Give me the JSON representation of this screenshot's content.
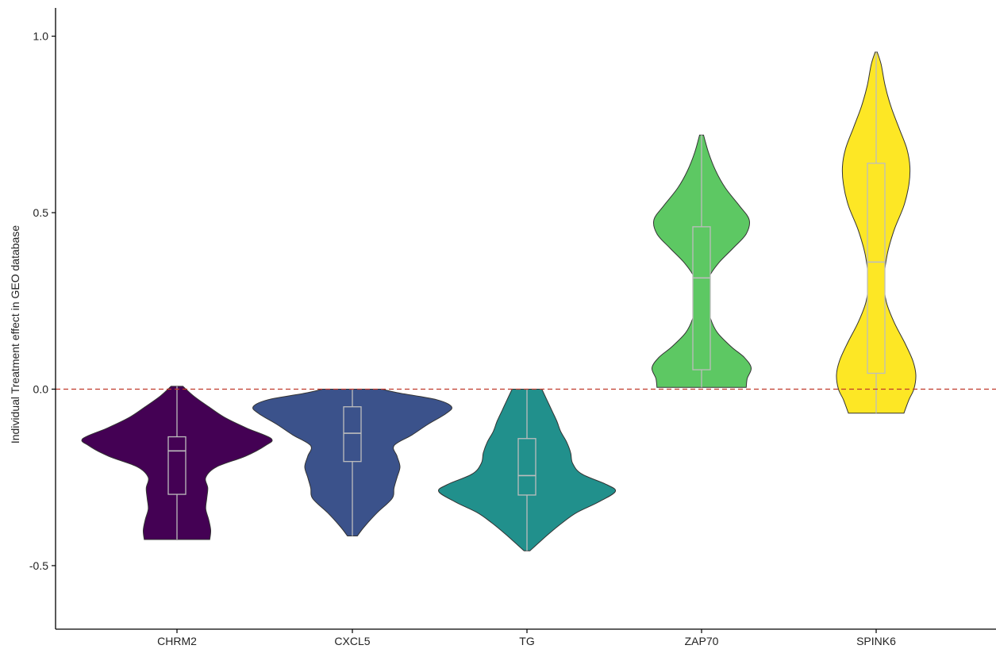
{
  "chart_data": {
    "type": "violin",
    "title": "",
    "xlabel": "",
    "ylabel": "Individual Treatment effect in GEO database",
    "ylim": [
      -0.68,
      1.08
    ],
    "y_ticks": [
      -0.5,
      0.0,
      0.5,
      1.0
    ],
    "y_tick_labels": [
      "-0.5",
      "0.0",
      "0.5",
      "1.0"
    ],
    "reference_line": {
      "y": 0.0,
      "style": "dashed",
      "color": "#c0392b"
    },
    "grid": false,
    "legend": "none",
    "categories": [
      "CHRM2",
      "CXCL5",
      "TG",
      "ZAP70",
      "SPINK6"
    ],
    "series": [
      {
        "category": "CHRM2",
        "color": "#440154",
        "min": -0.426,
        "max": 0.008,
        "box": {
          "q1": -0.298,
          "median": -0.175,
          "q3": -0.135
        },
        "density": [
          [
            -0.426,
            0.33
          ],
          [
            -0.4,
            0.34
          ],
          [
            -0.37,
            0.32
          ],
          [
            -0.34,
            0.29
          ],
          [
            -0.31,
            0.3
          ],
          [
            -0.28,
            0.31
          ],
          [
            -0.25,
            0.29
          ],
          [
            -0.22,
            0.4
          ],
          [
            -0.19,
            0.69
          ],
          [
            -0.16,
            0.89
          ],
          [
            -0.14,
            0.95
          ],
          [
            -0.11,
            0.7
          ],
          [
            -0.08,
            0.48
          ],
          [
            -0.05,
            0.32
          ],
          [
            -0.02,
            0.17
          ],
          [
            0.008,
            0.06
          ]
        ]
      },
      {
        "category": "CXCL5",
        "color": "#3b528b",
        "min": -0.416,
        "max": 0.0,
        "box": {
          "q1": -0.205,
          "median": -0.125,
          "q3": -0.05
        },
        "density": [
          [
            -0.416,
            0.05
          ],
          [
            -0.39,
            0.12
          ],
          [
            -0.35,
            0.25
          ],
          [
            -0.31,
            0.4
          ],
          [
            -0.28,
            0.42
          ],
          [
            -0.25,
            0.45
          ],
          [
            -0.22,
            0.48
          ],
          [
            -0.19,
            0.45
          ],
          [
            -0.16,
            0.42
          ],
          [
            -0.13,
            0.6
          ],
          [
            -0.1,
            0.76
          ],
          [
            -0.07,
            0.94
          ],
          [
            -0.05,
            1.0
          ],
          [
            -0.03,
            0.85
          ],
          [
            -0.01,
            0.45
          ],
          [
            0.0,
            0.3
          ]
        ]
      },
      {
        "category": "TG",
        "color": "#21908c",
        "min": -0.458,
        "max": 0.0,
        "box": {
          "q1": -0.3,
          "median": -0.245,
          "q3": -0.14
        },
        "density": [
          [
            -0.458,
            0.03
          ],
          [
            -0.44,
            0.1
          ],
          [
            -0.41,
            0.22
          ],
          [
            -0.38,
            0.35
          ],
          [
            -0.35,
            0.5
          ],
          [
            -0.32,
            0.72
          ],
          [
            -0.29,
            0.89
          ],
          [
            -0.27,
            0.8
          ],
          [
            -0.24,
            0.55
          ],
          [
            -0.21,
            0.46
          ],
          [
            -0.18,
            0.44
          ],
          [
            -0.15,
            0.4
          ],
          [
            -0.12,
            0.34
          ],
          [
            -0.09,
            0.3
          ],
          [
            -0.06,
            0.25
          ],
          [
            -0.03,
            0.2
          ],
          [
            0.0,
            0.15
          ]
        ]
      },
      {
        "category": "ZAP70",
        "color": "#5dc863",
        "min": 0.005,
        "max": 0.72,
        "box": {
          "q1": 0.055,
          "median": 0.315,
          "q3": 0.46
        },
        "density": [
          [
            0.005,
            0.45
          ],
          [
            0.03,
            0.46
          ],
          [
            0.06,
            0.5
          ],
          [
            0.09,
            0.43
          ],
          [
            0.12,
            0.3
          ],
          [
            0.16,
            0.16
          ],
          [
            0.2,
            0.09
          ],
          [
            0.24,
            0.06
          ],
          [
            0.28,
            0.05
          ],
          [
            0.32,
            0.08
          ],
          [
            0.36,
            0.18
          ],
          [
            0.4,
            0.32
          ],
          [
            0.44,
            0.45
          ],
          [
            0.48,
            0.48
          ],
          [
            0.52,
            0.38
          ],
          [
            0.57,
            0.24
          ],
          [
            0.62,
            0.14
          ],
          [
            0.67,
            0.07
          ],
          [
            0.72,
            0.02
          ]
        ]
      },
      {
        "category": "SPINK6",
        "color": "#fde725",
        "min": -0.068,
        "max": 0.955,
        "box": {
          "q1": 0.045,
          "median": 0.36,
          "q3": 0.64
        },
        "density": [
          [
            -0.068,
            0.28
          ],
          [
            -0.03,
            0.33
          ],
          [
            0.0,
            0.38
          ],
          [
            0.04,
            0.4
          ],
          [
            0.08,
            0.37
          ],
          [
            0.13,
            0.29
          ],
          [
            0.19,
            0.18
          ],
          [
            0.25,
            0.1
          ],
          [
            0.31,
            0.08
          ],
          [
            0.38,
            0.11
          ],
          [
            0.45,
            0.18
          ],
          [
            0.52,
            0.28
          ],
          [
            0.58,
            0.33
          ],
          [
            0.63,
            0.34
          ],
          [
            0.68,
            0.31
          ],
          [
            0.74,
            0.23
          ],
          [
            0.8,
            0.15
          ],
          [
            0.86,
            0.09
          ],
          [
            0.92,
            0.05
          ],
          [
            0.955,
            0.01
          ]
        ]
      }
    ]
  }
}
